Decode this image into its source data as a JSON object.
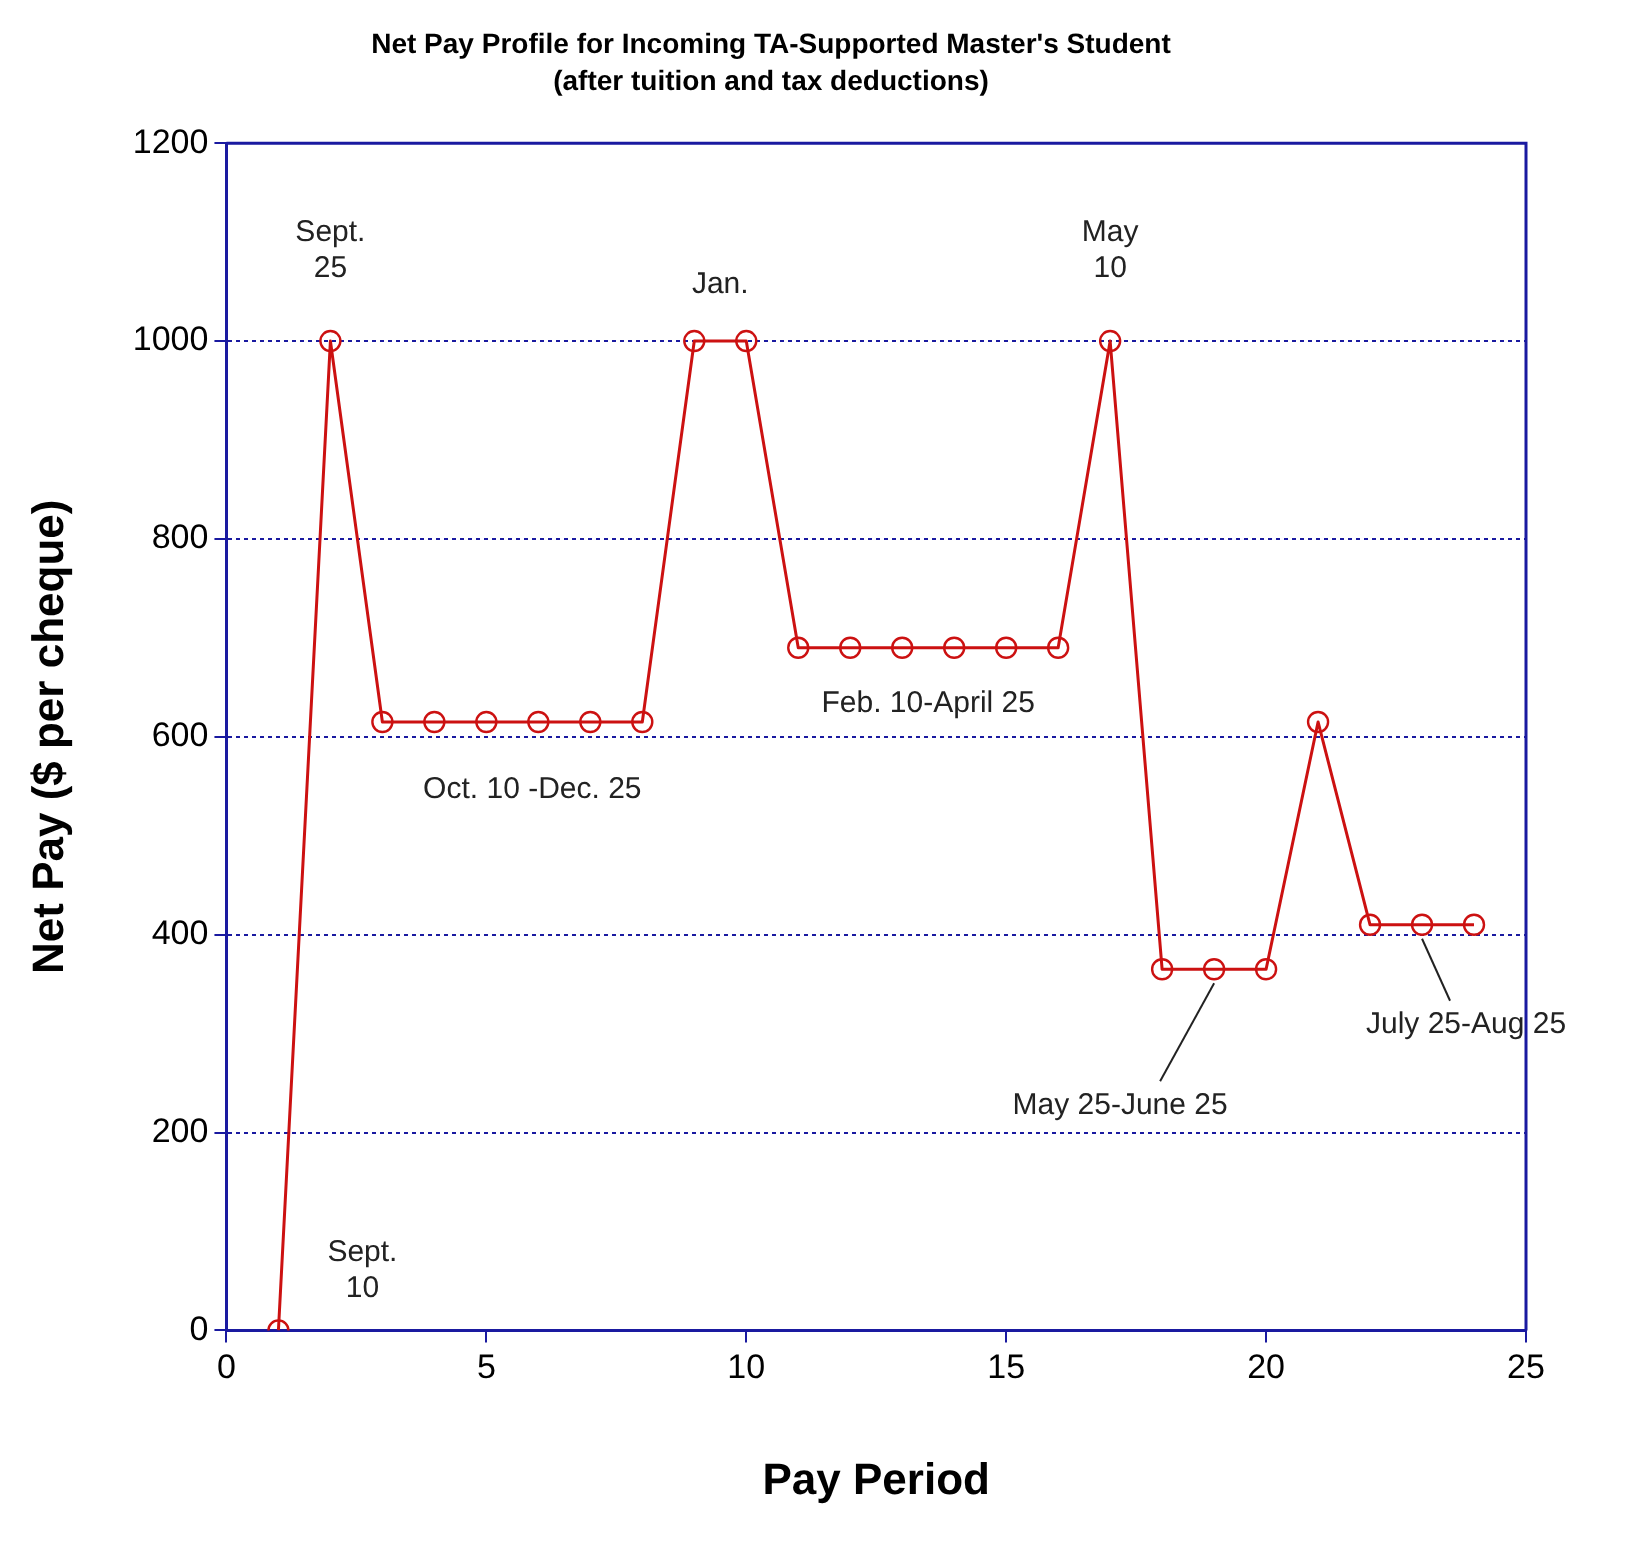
{
  "chart_data": {
    "type": "line",
    "title": "Net Pay Profile for Incoming TA-Supported Master's Student",
    "subtitle": "(after tuition and tax deductions)",
    "xlabel": "Pay Period",
    "ylabel": "Net Pay ($ per cheque)",
    "x": [
      1,
      2,
      3,
      4,
      5,
      6,
      7,
      8,
      9,
      10,
      11,
      12,
      13,
      14,
      15,
      16,
      17,
      18,
      19,
      20,
      21,
      22,
      23,
      24
    ],
    "series": [
      {
        "color": "#cc1111",
        "values": [
          0,
          1000,
          615,
          615,
          615,
          615,
          615,
          615,
          1000,
          1000,
          690,
          690,
          690,
          690,
          690,
          690,
          1000,
          365,
          365,
          365,
          615,
          410,
          410,
          410
        ]
      }
    ],
    "xlim": [
      0,
      25
    ],
    "xticks": [
      0,
      5,
      10,
      15,
      20,
      25
    ],
    "ylim": [
      0,
      1200
    ],
    "yticks": [
      0,
      200,
      400,
      600,
      800,
      1000,
      1200
    ],
    "grid": "y",
    "marker": "circle",
    "line_style": "solid",
    "annotations": [
      {
        "text": "Sept.\n10",
        "x": 1,
        "y": 0
      },
      {
        "text": "Sept.\n25",
        "x": 2,
        "y": 1000
      },
      {
        "text": "Jan.",
        "x": 9.5,
        "y": 1000
      },
      {
        "text": "May\n10",
        "x": 17,
        "y": 1000
      },
      {
        "text": "Oct. 10 -Dec. 25",
        "x": 5.5,
        "y": 615
      },
      {
        "text": "Feb. 10-April 25",
        "x": 13.5,
        "y": 690
      },
      {
        "text": "May 25-June 25",
        "x": 19,
        "y": 365
      },
      {
        "text": "July 25-Aug 25",
        "x": 23,
        "y": 410
      }
    ]
  }
}
